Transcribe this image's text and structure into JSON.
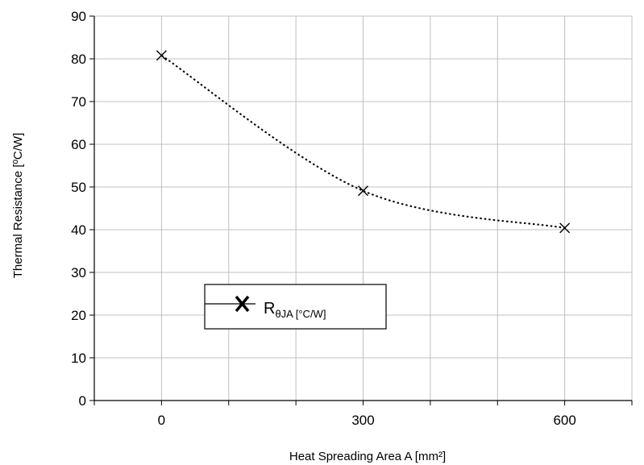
{
  "chart_data": {
    "type": "line",
    "x": [
      0,
      300,
      600
    ],
    "series": [
      {
        "name": "RθJA [°C/W]",
        "values": [
          80.8,
          49.1,
          40.4
        ]
      }
    ],
    "xlabel": "Heat Spreading Area A [mm²]",
    "ylabel": "Thermal Resistance [ºC/W]",
    "xticks": [
      "0",
      "300",
      "600"
    ],
    "yticks": [
      "0",
      "10",
      "20",
      "30",
      "40",
      "50",
      "60",
      "70",
      "80",
      "90"
    ],
    "xlim": [
      -100,
      700
    ],
    "ylim": [
      0,
      90
    ],
    "grid": true,
    "legend": {
      "main": "R",
      "sub": "θJA [°C/W]",
      "position": "lower-left"
    },
    "marker": "x",
    "line_style": "dotted"
  },
  "colors": {
    "line": "#000000",
    "grid": "#c0c0c0",
    "axis": "#000000",
    "background": "#ffffff"
  }
}
